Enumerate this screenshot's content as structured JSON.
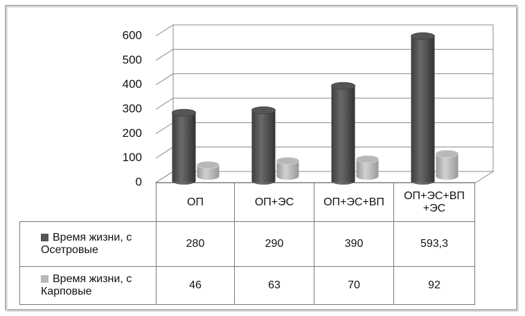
{
  "chart_data": {
    "type": "bar3d",
    "categories": [
      "ОП",
      "ОП+ЭС",
      "ОП+ЭС+ВП",
      "ОП+ЭС+ВП +ЭС"
    ],
    "series": [
      {
        "name": "Время жизни, с Осетровые",
        "color": "#555555",
        "values": [
          280,
          290,
          390,
          593.3
        ],
        "value_labels": [
          "280",
          "290",
          "390",
          "593,3"
        ]
      },
      {
        "name": "Время жизни, с Карповые",
        "color": "#b8b8b8",
        "values": [
          46,
          63,
          70,
          92
        ]
      }
    ],
    "ylim": [
      0,
      600
    ],
    "yticks": [
      0,
      100,
      200,
      300,
      400,
      500,
      600
    ],
    "grid": true
  }
}
